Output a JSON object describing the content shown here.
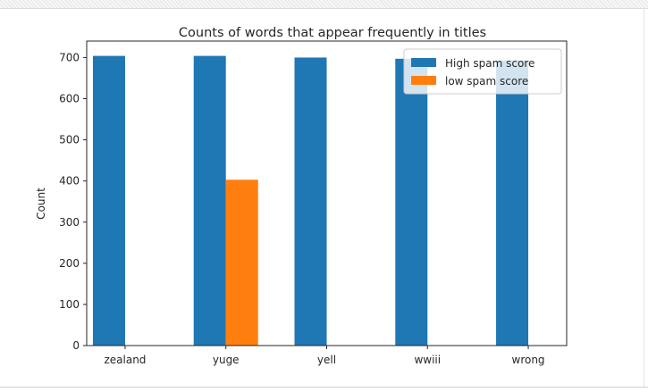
{
  "chart_data": {
    "type": "bar",
    "title": "Counts of words that appear frequently in titles",
    "xlabel": "",
    "ylabel": "Count",
    "categories": [
      "zealand",
      "yuge",
      "yell",
      "wwiii",
      "wrong"
    ],
    "series": [
      {
        "name": "High spam score",
        "color": "#1f77b4",
        "values": [
          704,
          704,
          700,
          697,
          693
        ]
      },
      {
        "name": "low spam score",
        "color": "#ff7f0e",
        "values": [
          0,
          403,
          0,
          0,
          0
        ]
      }
    ],
    "ylim": [
      0,
      740
    ],
    "yticks": [
      0,
      100,
      200,
      300,
      400,
      500,
      600,
      700
    ],
    "grid": false,
    "legend_position": "top-right"
  }
}
